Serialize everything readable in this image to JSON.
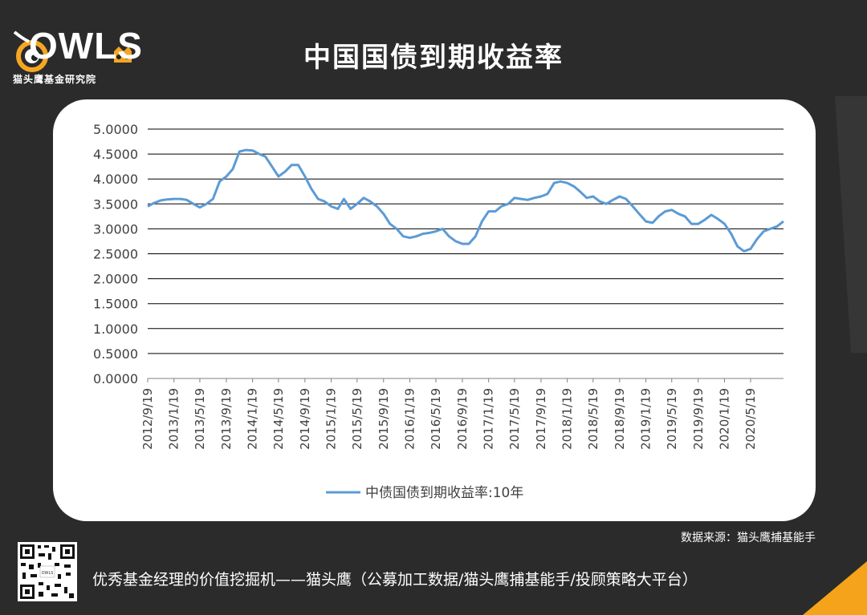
{
  "header": {
    "title": "中国国债到期收益率",
    "logo_text": "OWLS",
    "logo_subtitle": "猫头鹰基金研究院"
  },
  "chart_data": {
    "type": "line",
    "title": "",
    "xlabel": "",
    "ylabel": "",
    "ylim": [
      0,
      5
    ],
    "yticks": [
      "5.0000",
      "4.5000",
      "4.0000",
      "3.5000",
      "3.0000",
      "2.5000",
      "2.0000",
      "1.5000",
      "1.0000",
      "0.5000",
      "0.0000"
    ],
    "xticks": [
      "2012/9/19",
      "2013/1/19",
      "2013/5/19",
      "2013/9/19",
      "2014/1/19",
      "2014/5/19",
      "2014/9/19",
      "2015/1/19",
      "2015/5/19",
      "2015/9/19",
      "2016/1/19",
      "2016/5/19",
      "2016/9/19",
      "2017/1/19",
      "2017/5/19",
      "2017/9/19",
      "2018/1/19",
      "2018/5/19",
      "2018/9/19",
      "2019/1/19",
      "2019/5/19",
      "2019/9/19",
      "2020/1/19",
      "2020/5/19"
    ],
    "grid": "horizontal",
    "legend": "bottom",
    "series": [
      {
        "name": "中债国债到期收益率:10年",
        "color": "#5b9bd5",
        "x": [
          "2012/9/19",
          "2012/10/19",
          "2012/11/19",
          "2012/12/19",
          "2013/1/19",
          "2013/2/19",
          "2013/3/19",
          "2013/4/19",
          "2013/5/19",
          "2013/6/19",
          "2013/7/19",
          "2013/8/19",
          "2013/9/19",
          "2013/10/19",
          "2013/11/19",
          "2013/12/19",
          "2014/1/19",
          "2014/2/19",
          "2014/3/19",
          "2014/4/19",
          "2014/5/19",
          "2014/6/19",
          "2014/7/19",
          "2014/8/19",
          "2014/9/19",
          "2014/10/19",
          "2014/11/19",
          "2014/12/19",
          "2015/1/19",
          "2015/2/19",
          "2015/3/19",
          "2015/4/19",
          "2015/5/19",
          "2015/6/19",
          "2015/7/19",
          "2015/8/19",
          "2015/9/19",
          "2015/10/19",
          "2015/11/19",
          "2015/12/19",
          "2016/1/19",
          "2016/2/19",
          "2016/3/19",
          "2016/4/19",
          "2016/5/19",
          "2016/6/19",
          "2016/7/19",
          "2016/8/19",
          "2016/9/19",
          "2016/10/19",
          "2016/11/19",
          "2016/12/19",
          "2017/1/19",
          "2017/2/19",
          "2017/3/19",
          "2017/4/19",
          "2017/5/19",
          "2017/6/19",
          "2017/7/19",
          "2017/8/19",
          "2017/9/19",
          "2017/10/19",
          "2017/11/19",
          "2017/12/19",
          "2018/1/19",
          "2018/2/19",
          "2018/3/19",
          "2018/4/19",
          "2018/5/19",
          "2018/6/19",
          "2018/7/19",
          "2018/8/19",
          "2018/9/19",
          "2018/10/19",
          "2018/11/19",
          "2018/12/19",
          "2019/1/19",
          "2019/2/19",
          "2019/3/19",
          "2019/4/19",
          "2019/5/19",
          "2019/6/19",
          "2019/7/19",
          "2019/8/19",
          "2019/9/19",
          "2019/10/19",
          "2019/11/19",
          "2019/12/19",
          "2020/1/19",
          "2020/2/19",
          "2020/3/19",
          "2020/4/19",
          "2020/5/19",
          "2020/6/19",
          "2020/7/19",
          "2020/8/19",
          "2020/9/19",
          "2020/10/19"
        ],
        "values": [
          3.45,
          3.52,
          3.57,
          3.59,
          3.6,
          3.6,
          3.58,
          3.5,
          3.43,
          3.5,
          3.6,
          3.95,
          4.05,
          4.2,
          4.55,
          4.58,
          4.57,
          4.5,
          4.45,
          4.25,
          4.05,
          4.15,
          4.28,
          4.28,
          4.05,
          3.8,
          3.6,
          3.55,
          3.45,
          3.4,
          3.6,
          3.4,
          3.5,
          3.62,
          3.55,
          3.45,
          3.3,
          3.1,
          3.0,
          2.85,
          2.82,
          2.85,
          2.9,
          2.92,
          2.95,
          3.0,
          2.85,
          2.75,
          2.7,
          2.7,
          2.85,
          3.15,
          3.35,
          3.35,
          3.45,
          3.5,
          3.62,
          3.6,
          3.58,
          3.62,
          3.65,
          3.7,
          3.92,
          3.95,
          3.92,
          3.85,
          3.75,
          3.62,
          3.65,
          3.55,
          3.5,
          3.58,
          3.65,
          3.6,
          3.45,
          3.3,
          3.15,
          3.12,
          3.25,
          3.35,
          3.38,
          3.3,
          3.25,
          3.1,
          3.1,
          3.18,
          3.28,
          3.2,
          3.1,
          2.9,
          2.65,
          2.55,
          2.6,
          2.8,
          2.95,
          3.0,
          3.05,
          3.15
        ]
      }
    ]
  },
  "source": "数据来源：猫头鹰捕基能手",
  "footer": "优秀基金经理的价值挖掘机——猫头鹰（公募加工数据/猫头鹰捕基能手/投顾策略大平台）",
  "colors": {
    "background": "#2b2b2b",
    "panel": "#ffffff",
    "series": "#5b9bd5",
    "logo_accent": "#f5a623"
  }
}
